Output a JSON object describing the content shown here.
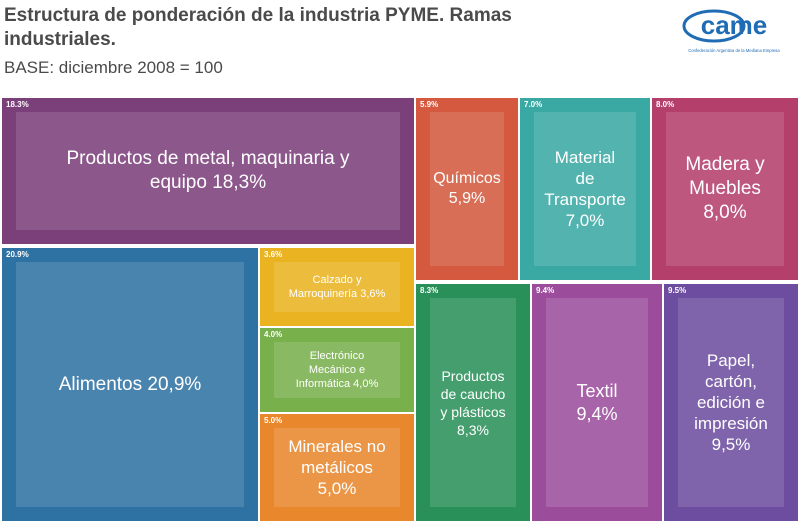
{
  "header": {
    "title": "Estructura de ponderación de la industria PYME. Ramas industriales.",
    "subtitle": "BASE: diciembre 2008 = 100"
  },
  "logo": {
    "text": "came",
    "tagline": "Confederación Argentina de la Mediana Empresa",
    "color": "#1f6cb5"
  },
  "chart_data": {
    "type": "treemap",
    "title": "Estructura de ponderación de la industria PYME. Ramas industriales.",
    "subtitle": "BASE: diciembre 2008 = 100",
    "items": [
      {
        "name": "Productos de metal, maquinaria y equipo",
        "value": 18.3,
        "label": "Productos de metal, maquinaria y equipo 18,3%",
        "pct_label": "18.3%",
        "color": "#7b3f7a"
      },
      {
        "name": "Químicos",
        "value": 5.9,
        "label": "Químicos 5,9%",
        "pct_label": "5.9%",
        "color": "#d4593f"
      },
      {
        "name": "Material de Transporte",
        "value": 7.0,
        "label": "Material de Transporte 7,0%",
        "pct_label": "7.0%",
        "color": "#3aa9a4"
      },
      {
        "name": "Madera y Muebles",
        "value": 8.0,
        "label": "Madera y Muebles 8,0%",
        "pct_label": "8.0%",
        "color": "#b43f6b"
      },
      {
        "name": "Alimentos",
        "value": 20.9,
        "label": "Alimentos 20,9%",
        "pct_label": "20.9%",
        "color": "#2e72a3"
      },
      {
        "name": "Calzado y Marroquinería",
        "value": 3.6,
        "label": "Calzado y Marroquinería 3,6%",
        "pct_label": "3.6%",
        "color": "#eab321"
      },
      {
        "name": "Electrónico Mecánico e Informática",
        "value": 4.0,
        "label": "Electrónico Mecánico e Informática 4,0%",
        "pct_label": "4.0%",
        "color": "#78b04c"
      },
      {
        "name": "Minerales no metálicos",
        "value": 5.0,
        "label": "Minerales no metálicos 5,0%",
        "pct_label": "5.0%",
        "color": "#e8872b"
      },
      {
        "name": "Productos de caucho y plásticos",
        "value": 8.3,
        "label": "Productos de caucho y plásticos 8,3%",
        "pct_label": "8.3%",
        "color": "#2a9059"
      },
      {
        "name": "Textil",
        "value": 9.4,
        "label": "Textil 9,4%",
        "pct_label": "9.4%",
        "color": "#9b4d9b"
      },
      {
        "name": "Papel, cartón, edición e impresión",
        "value": 9.5,
        "label": "Papel, cartón, edición e impresión 9,5%",
        "pct_label": "9.5%",
        "color": "#6d4d9f"
      }
    ]
  }
}
